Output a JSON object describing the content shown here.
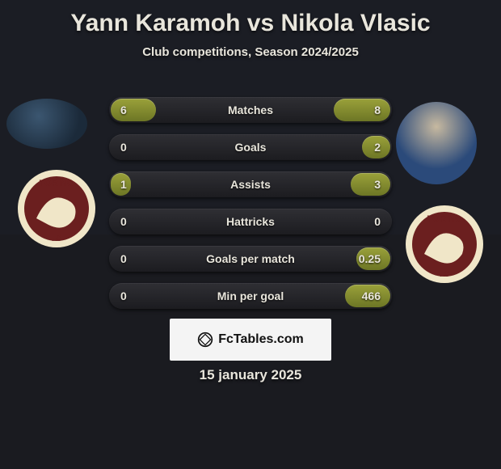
{
  "title": "Yann Karamoh vs Nikola Vlasic",
  "subtitle": "Club competitions, Season 2024/2025",
  "date": "15 january 2025",
  "brand": "FcTables.com",
  "colors": {
    "bar_fill": "#8f9a33",
    "track": "#26272c",
    "text": "#e9e6dc",
    "badge_ring": "#f0e6c8",
    "badge_fill": "#6b1f1f"
  },
  "player1": {
    "name": "Yann Karamoh",
    "club": "Torino FC"
  },
  "player2": {
    "name": "Nikola Vlasic",
    "club": "Torino FC"
  },
  "rows": [
    {
      "label": "Matches",
      "left": "6",
      "right": "8",
      "left_pct": 16,
      "right_pct": 20
    },
    {
      "label": "Goals",
      "left": "0",
      "right": "2",
      "left_pct": 0,
      "right_pct": 10
    },
    {
      "label": "Assists",
      "left": "1",
      "right": "3",
      "left_pct": 7,
      "right_pct": 14
    },
    {
      "label": "Hattricks",
      "left": "0",
      "right": "0",
      "left_pct": 0,
      "right_pct": 0
    },
    {
      "label": "Goals per match",
      "left": "0",
      "right": "0.25",
      "left_pct": 0,
      "right_pct": 12
    },
    {
      "label": "Min per goal",
      "left": "0",
      "right": "466",
      "left_pct": 0,
      "right_pct": 16
    }
  ]
}
